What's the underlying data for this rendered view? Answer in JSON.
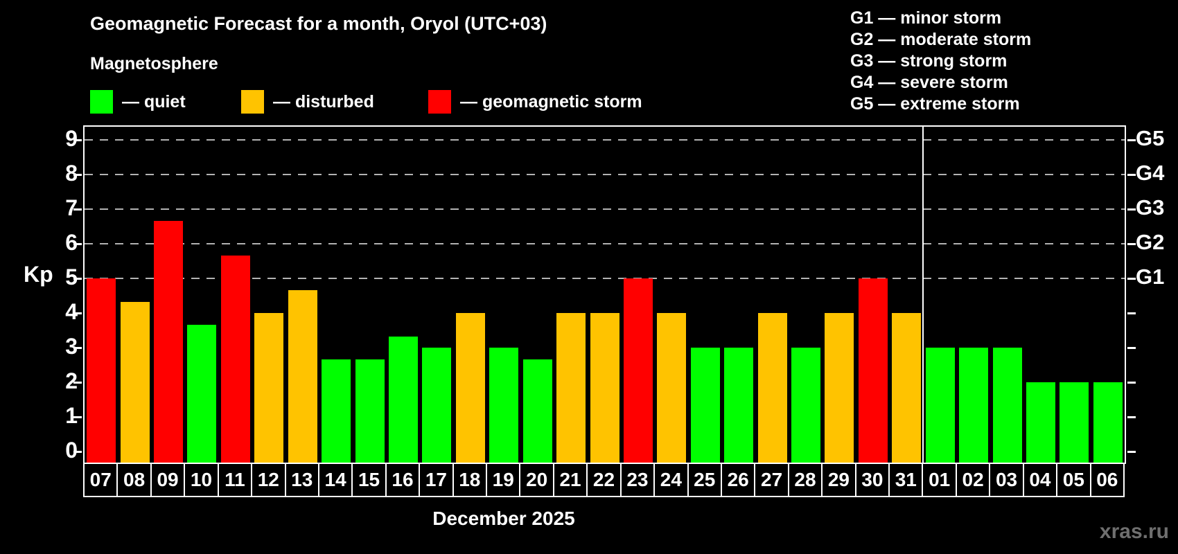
{
  "header": {
    "title": "Geomagnetic Forecast for a month, Oryol (UTC+03)",
    "subtitle": "Magnetosphere"
  },
  "magnetosphere_legend": [
    {
      "status": "quiet",
      "label": "— quiet",
      "color": "#00ff00"
    },
    {
      "status": "disturbed",
      "label": "— disturbed",
      "color": "#ffc300"
    },
    {
      "status": "storm",
      "label": "— geomagnetic storm",
      "color": "#ff0000"
    }
  ],
  "storm_scale_legend": [
    "G1 — minor storm",
    "G2 — moderate storm",
    "G3 — strong storm",
    "G4 — severe storm",
    "G5 — extreme storm"
  ],
  "axis": {
    "ylabel": "Kp",
    "yticks": [
      0,
      1,
      2,
      3,
      4,
      5,
      6,
      7,
      8,
      9
    ],
    "right_axis_labels": [
      {
        "kp": 5,
        "text": "G1"
      },
      {
        "kp": 6,
        "text": "G2"
      },
      {
        "kp": 7,
        "text": "G3"
      },
      {
        "kp": 8,
        "text": "G4"
      },
      {
        "kp": 9,
        "text": "G5"
      }
    ],
    "gridlines_kp": [
      5,
      6,
      7,
      8,
      9
    ]
  },
  "footer": {
    "month_label": "December 2025",
    "watermark": "xras.ru"
  },
  "colors": {
    "background": "#000000",
    "text": "#ffffff",
    "grid": "#b3b3b3",
    "divider": "#ffffff",
    "quiet": "#00ff00",
    "disturbed": "#ffc300",
    "storm": "#ff0000"
  },
  "chart_data": {
    "type": "bar",
    "title": "Geomagnetic Forecast for a month, Oryol (UTC+03)",
    "xlabel": "December 2025",
    "ylabel": "Kp",
    "ylim": [
      0,
      9.4
    ],
    "grid": "dashed, Kp 5-9 only",
    "legend_position": "top",
    "categories": [
      "07",
      "08",
      "09",
      "10",
      "11",
      "12",
      "13",
      "14",
      "15",
      "16",
      "17",
      "18",
      "19",
      "20",
      "21",
      "22",
      "23",
      "24",
      "25",
      "26",
      "27",
      "28",
      "29",
      "30",
      "31",
      "01",
      "02",
      "03",
      "04",
      "05",
      "06"
    ],
    "values": [
      5,
      4.33,
      6.67,
      3.67,
      5.67,
      4,
      4.67,
      2.67,
      2.67,
      3.33,
      3,
      4,
      3,
      2.67,
      4,
      4,
      5,
      4,
      3,
      3,
      4,
      3,
      4,
      5,
      4,
      3,
      3,
      3,
      2,
      2,
      2
    ],
    "statuses": [
      "storm",
      "disturbed",
      "storm",
      "quiet",
      "storm",
      "disturbed",
      "disturbed",
      "quiet",
      "quiet",
      "quiet",
      "quiet",
      "disturbed",
      "quiet",
      "quiet",
      "disturbed",
      "disturbed",
      "storm",
      "disturbed",
      "quiet",
      "quiet",
      "disturbed",
      "quiet",
      "disturbed",
      "storm",
      "disturbed",
      "quiet",
      "quiet",
      "quiet",
      "quiet",
      "quiet",
      "quiet"
    ],
    "month_split_index": 25
  }
}
